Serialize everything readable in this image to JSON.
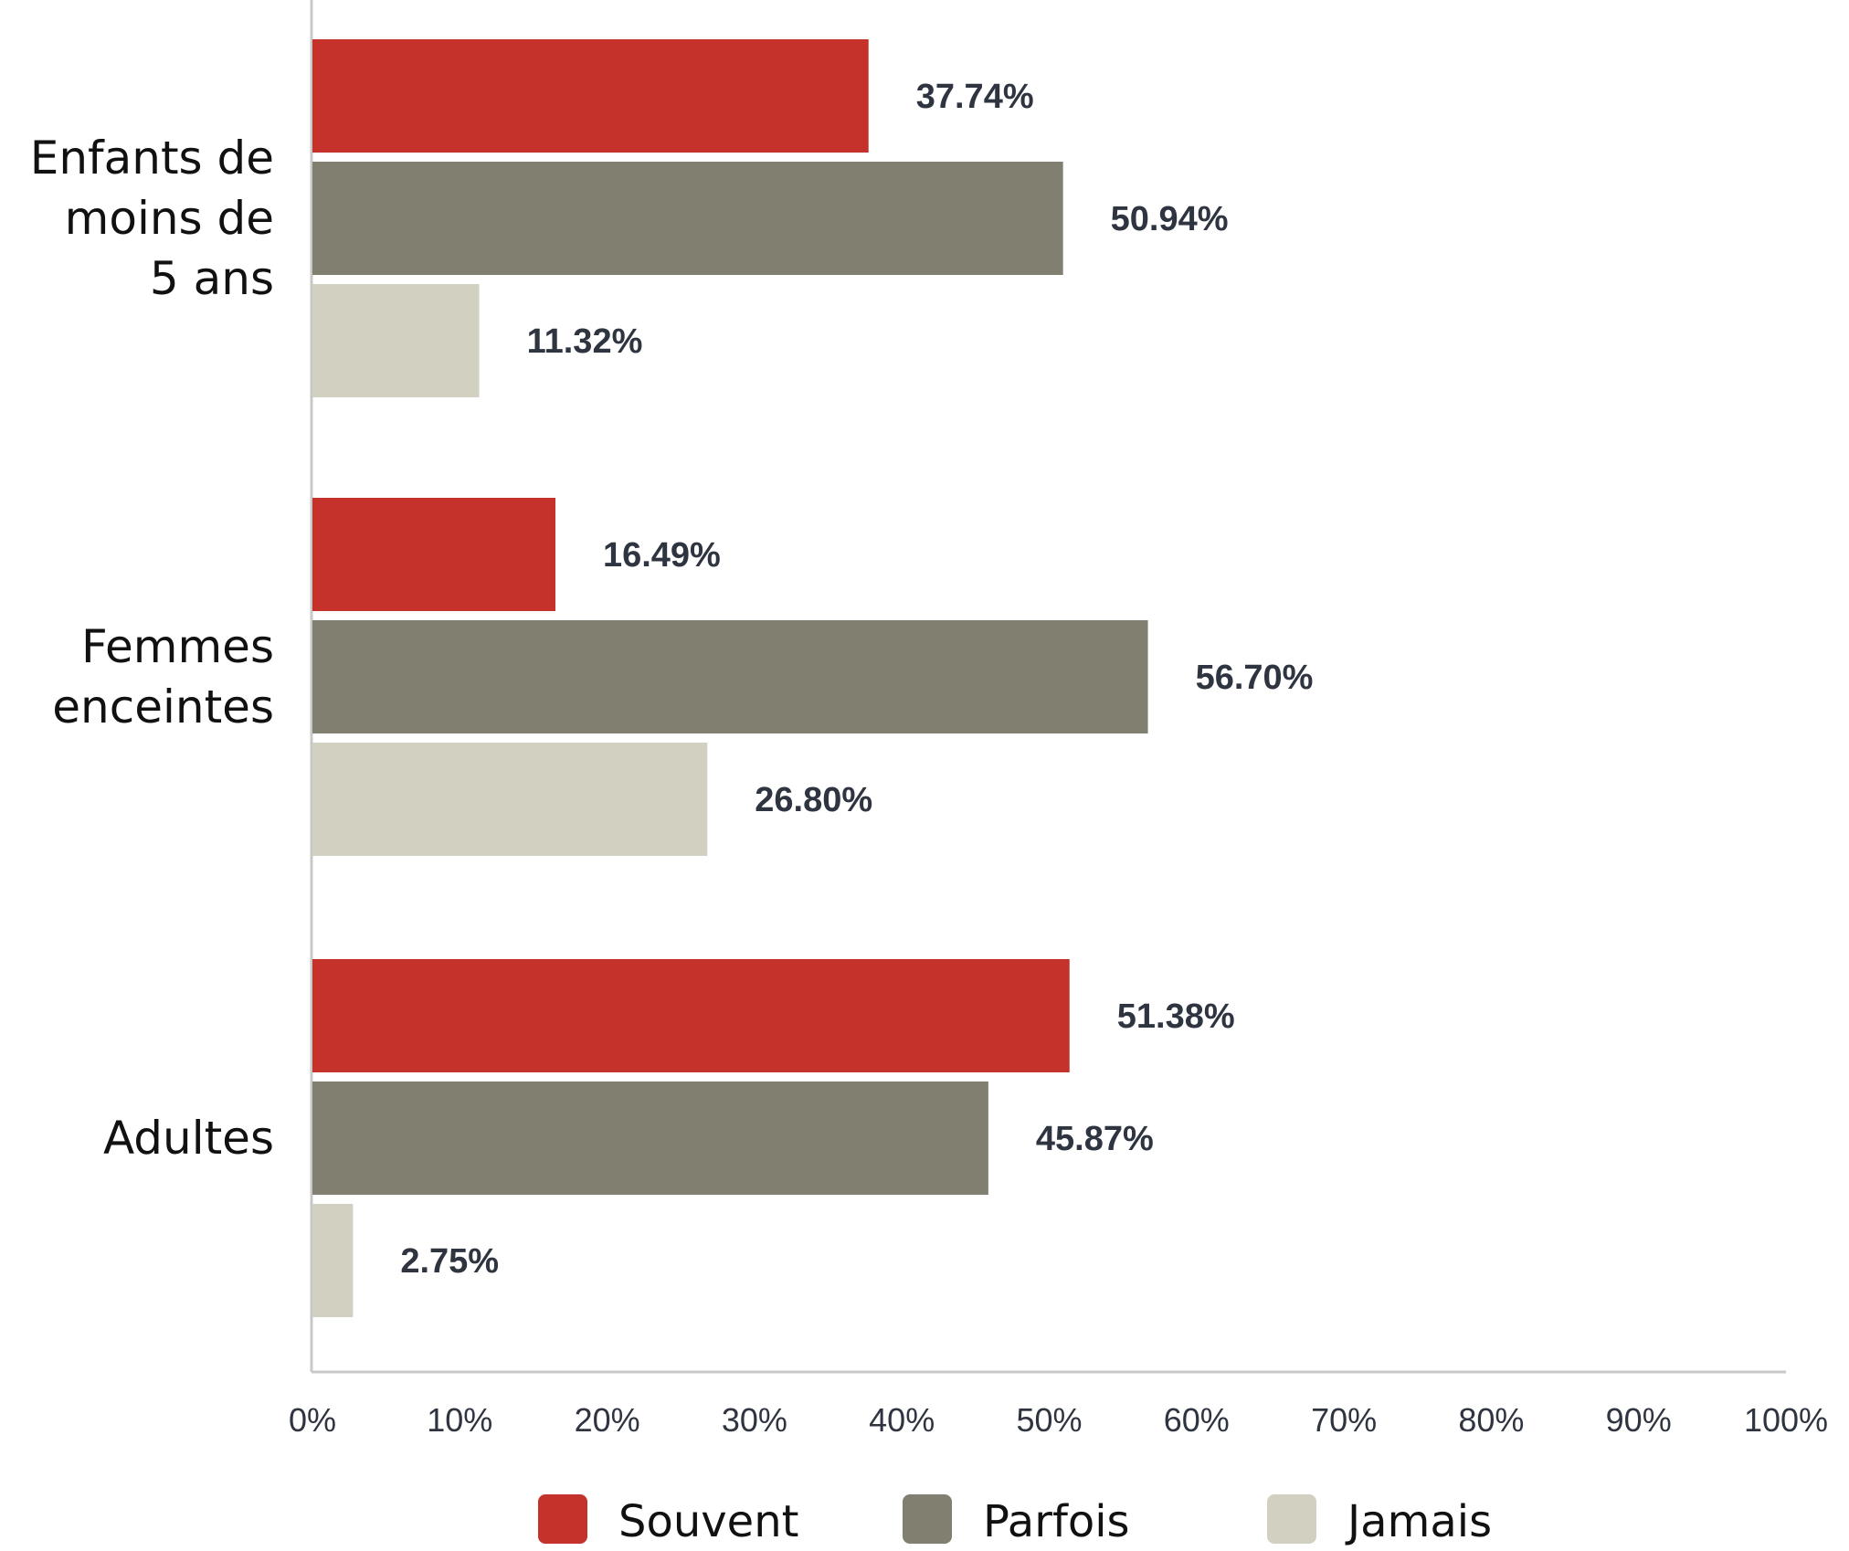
{
  "chart_data": {
    "type": "bar",
    "orientation": "horizontal",
    "categories": [
      [
        "Enfants de",
        "moins de",
        "5 ans"
      ],
      [
        "Femmes",
        "enceintes"
      ],
      [
        "Adultes"
      ]
    ],
    "series": [
      {
        "name": "Souvent",
        "color": "#c5322b",
        "values": [
          37.74,
          16.49,
          51.38
        ],
        "labels": [
          "37.74%",
          "16.49%",
          "51.38%"
        ]
      },
      {
        "name": "Parfois",
        "color": "#807f70",
        "values": [
          50.94,
          56.7,
          45.87
        ],
        "labels": [
          "50.94%",
          "56.70%",
          "45.87%"
        ]
      },
      {
        "name": "Jamais",
        "color": "#d2d0c0",
        "values": [
          11.32,
          26.8,
          2.75
        ],
        "labels": [
          "11.32%",
          "26.80%",
          "2.75%"
        ]
      }
    ],
    "xlim": [
      0,
      100
    ],
    "xticks": [
      "0%",
      "10%",
      "20%",
      "30%",
      "40%",
      "50%",
      "60%",
      "70%",
      "80%",
      "90%",
      "100%"
    ],
    "grid": false,
    "legend_position": "bottom"
  }
}
